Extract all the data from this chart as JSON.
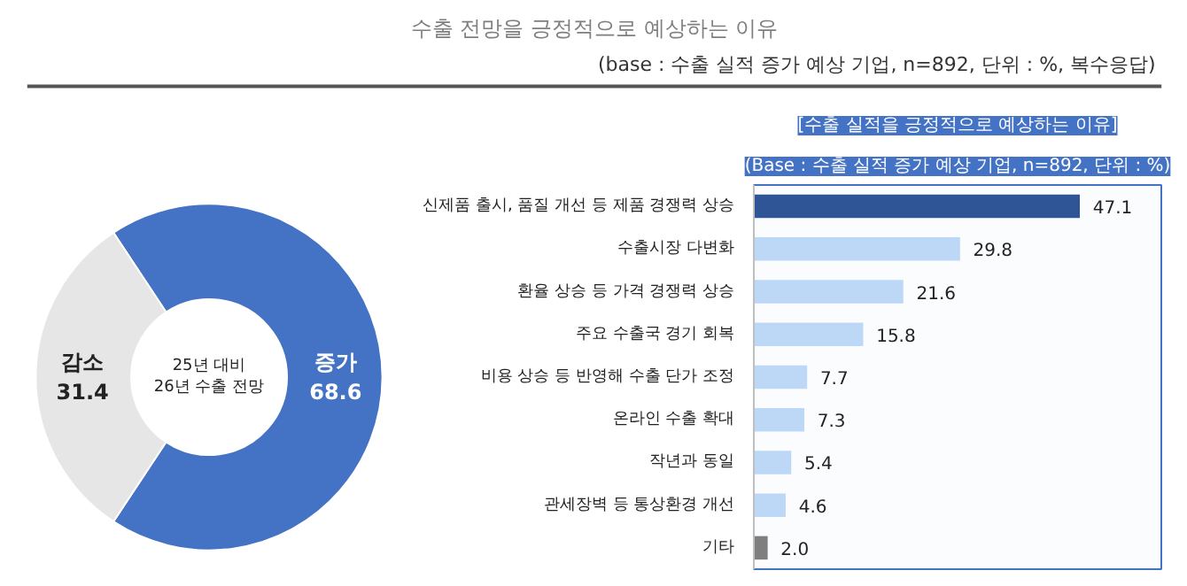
{
  "chart_data": [
    {
      "type": "other",
      "title": "수출 전망을 긍정적으로 예상하는 이유",
      "subtitle": "(base : 수출 실적 증가 예상 기업, n=892, 단위 : %, 복수응답)"
    },
    {
      "type": "donut",
      "categories": [
        "증가",
        "감소"
      ],
      "values": [
        68.6,
        31.4
      ],
      "colors": [
        "#4472c4",
        "#e7e6e6"
      ],
      "annotations": [
        "25년 대비\n26년 수출 전망"
      ],
      "data_labels": true
    },
    {
      "type": "bar",
      "orientation": "horizontal",
      "title": "[수출 실적을 긍정적으로 예상하는 이유]",
      "subtitle": "(Base : 수출 실적 증가 예상 기업, n=892, 단위 : %)",
      "categories": [
        "신제품 출시, 품질 개선 등 제품 경쟁력 상승",
        "수출시장 다변화",
        "환율 상승 등 가격 경쟁력 상승",
        "주요 수출국 경기 회복",
        "비용 상승 등 반영해 수출 단가 조정",
        "온라인 수출 확대",
        "작년과 동일",
        "관세장벽 등 통상환경 개선",
        "기타"
      ],
      "values": [
        47.1,
        29.8,
        21.6,
        15.8,
        7.7,
        7.3,
        5.4,
        4.6,
        2.0
      ],
      "value_labels": [
        "47.1",
        "29.8",
        "21.6",
        "15.8",
        "7.7",
        "7.3",
        "5.4",
        "4.6",
        "2.0"
      ],
      "colors": [
        "#2f5597",
        "#bdd7f7",
        "#bdd7f7",
        "#bdd7f7",
        "#bdd7f7",
        "#bdd7f7",
        "#bdd7f7",
        "#bdd7f7",
        "#7f7f7f"
      ]
    }
  ]
}
